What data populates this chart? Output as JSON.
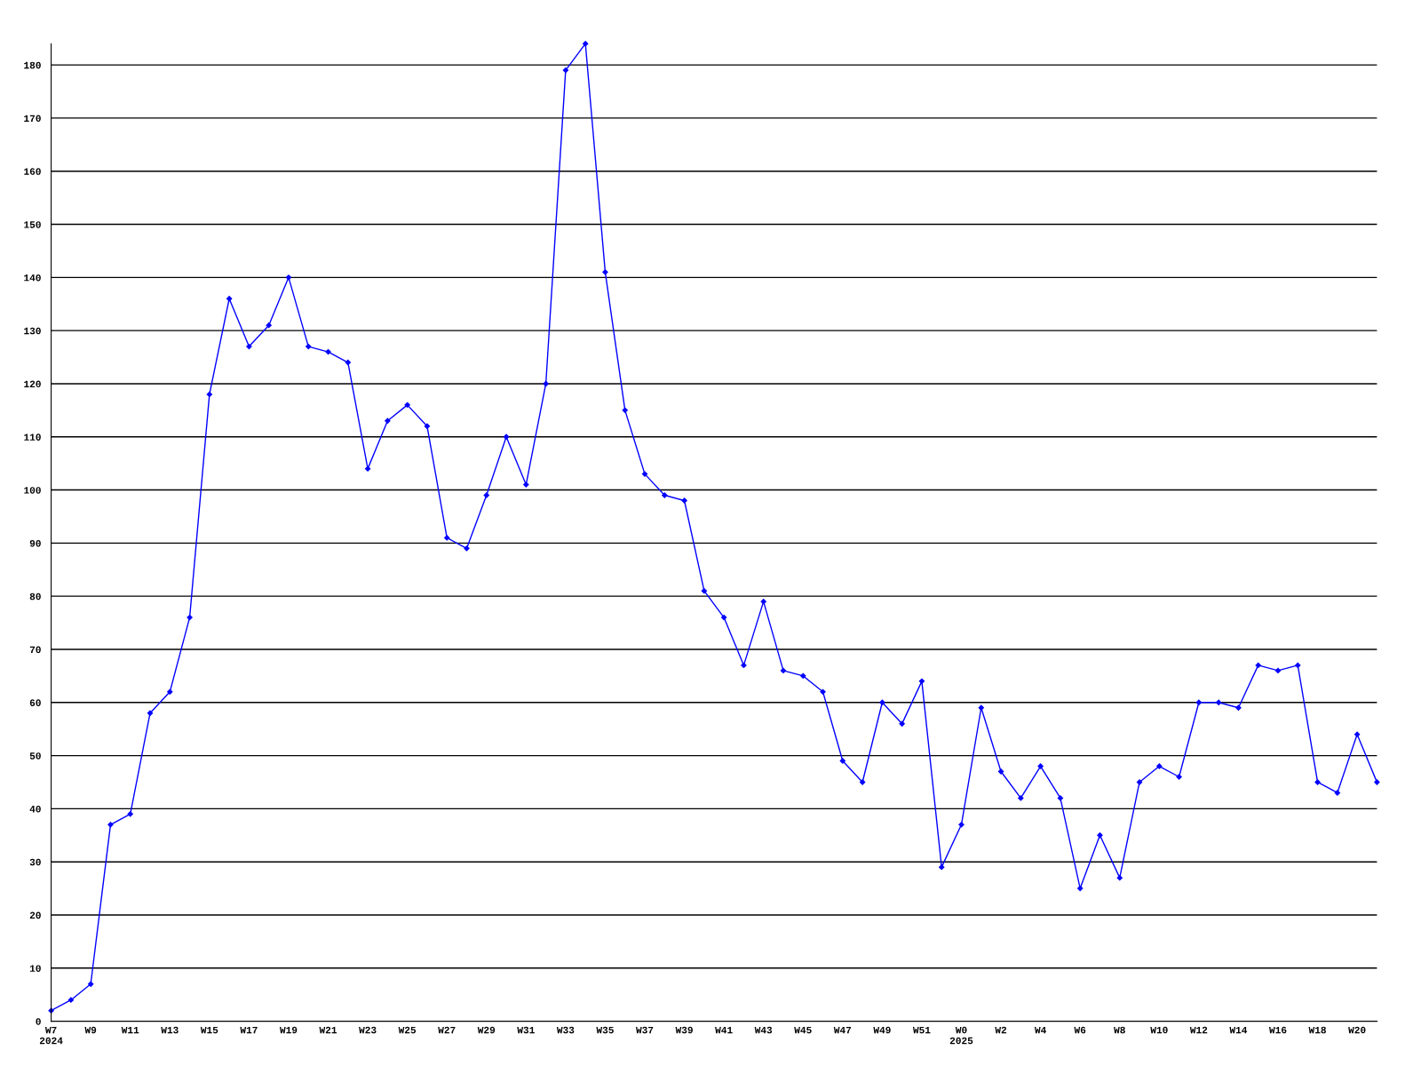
{
  "chart_data": {
    "type": "line",
    "categories": [
      "W7\n2024",
      null,
      "W9",
      null,
      "W11",
      null,
      "W13",
      null,
      "W15",
      null,
      "W17",
      null,
      "W19",
      null,
      "W21",
      null,
      "W23",
      null,
      "W25",
      null,
      "W27",
      null,
      "W29",
      null,
      "W31",
      null,
      "W33",
      null,
      "W35",
      null,
      "W37",
      null,
      "W39",
      null,
      "W41",
      null,
      "W43",
      null,
      "W45",
      null,
      "W47",
      null,
      "W49",
      null,
      "W51",
      null,
      "W0\n2025",
      null,
      "W2",
      null,
      "W4",
      null,
      "W6",
      null,
      "W8",
      null,
      "W10",
      null,
      "W12",
      null,
      "W14",
      null,
      "W16",
      null,
      "W18",
      null,
      "W20",
      null
    ],
    "series": [
      {
        "color": "#0000ff",
        "values": [
          2,
          4,
          7,
          37,
          39,
          58,
          62,
          76,
          118,
          136,
          127,
          131,
          140,
          127,
          126,
          124,
          104,
          113,
          116,
          112,
          91,
          89,
          99,
          110,
          101,
          120,
          179,
          184,
          141,
          115,
          103,
          99,
          98,
          81,
          76,
          67,
          79,
          66,
          65,
          62,
          49,
          45,
          60,
          56,
          64,
          29,
          37,
          59,
          47,
          42,
          48,
          42,
          25,
          35,
          27,
          45,
          48,
          46,
          60,
          60,
          59,
          67,
          66,
          67,
          45,
          43,
          54,
          45
        ]
      }
    ],
    "ylim": [
      0,
      184
    ],
    "yticks": [
      0,
      10,
      20,
      30,
      40,
      50,
      60,
      70,
      80,
      90,
      100,
      110,
      120,
      130,
      140,
      150,
      160,
      170,
      180
    ],
    "grid": "y",
    "marker": "diamond",
    "line_style": "solid"
  }
}
